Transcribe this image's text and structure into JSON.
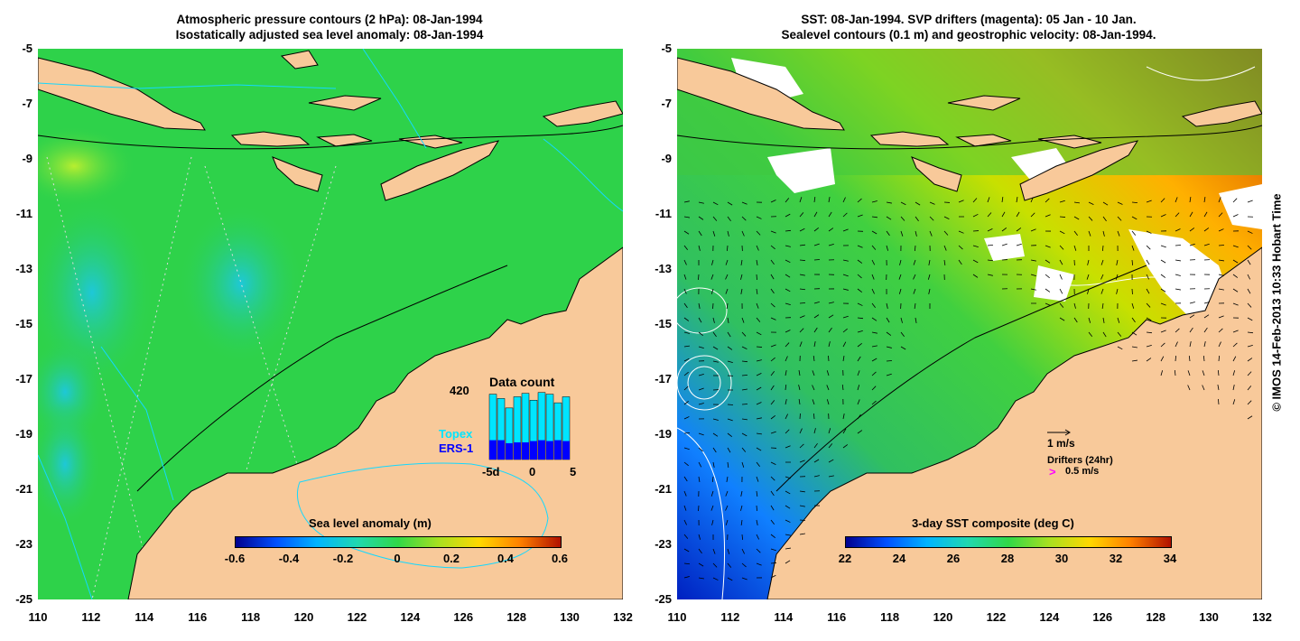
{
  "left_panel": {
    "title_line1": "Atmospheric pressure contours (2 hPa): 08-Jan-1994",
    "title_line2": "Isostatically adjusted sea level anomaly: 08-Jan-1994",
    "colorbar": {
      "title": "Sea level anomaly (m)",
      "ticks": [
        "-0.6",
        "-0.4",
        "-0.2",
        "0",
        "0.2",
        "0.4",
        "0.6"
      ],
      "range": [
        -0.6,
        0.6
      ]
    },
    "inset": {
      "title": "Data count",
      "max_label": "420",
      "series_labels": [
        "Topex",
        "ERS-1"
      ],
      "series_colors": [
        "#00e5ff",
        "#0000ff"
      ],
      "x_ticks": [
        "-5d",
        "0",
        "5"
      ],
      "topex_counts": [
        380,
        355,
        300,
        365,
        385,
        345,
        390,
        380,
        330,
        365
      ],
      "ers1_counts": [
        225,
        225,
        190,
        200,
        200,
        215,
        225,
        215,
        225,
        215
      ]
    }
  },
  "right_panel": {
    "title_line1": "SST: 08-Jan-1994. SVP drifters (magenta): 05 Jan - 10 Jan.",
    "title_line2": "Sealevel contours (0.1 m) and geostrophic velocity: 08-Jan-1994.",
    "colorbar": {
      "title": "3-day SST composite (deg C)",
      "ticks": [
        "22",
        "24",
        "26",
        "28",
        "30",
        "32",
        "34"
      ],
      "range": [
        22,
        34
      ]
    },
    "velocity_legend": "1 m/s",
    "drifters_legend": "Drifters (24hr)",
    "drifter_speed": "0.5 m/s",
    "drifter_symbol": ">"
  },
  "axes": {
    "lat_ticks": [
      "-5",
      "-7",
      "-9",
      "-11",
      "-13",
      "-15",
      "-17",
      "-19",
      "-21",
      "-23",
      "-25"
    ],
    "lon_ticks": [
      "110",
      "112",
      "114",
      "116",
      "118",
      "120",
      "122",
      "124",
      "126",
      "128",
      "130",
      "132"
    ],
    "lat_range": [
      -25,
      -5
    ],
    "lon_range": [
      110,
      132
    ]
  },
  "credit": "© IMOS 14-Feb-2013 10:33 Hobart Time",
  "colors": {
    "land": "#f8c99a",
    "ocean_left": "#2ed24a",
    "coast": "#000000"
  }
}
